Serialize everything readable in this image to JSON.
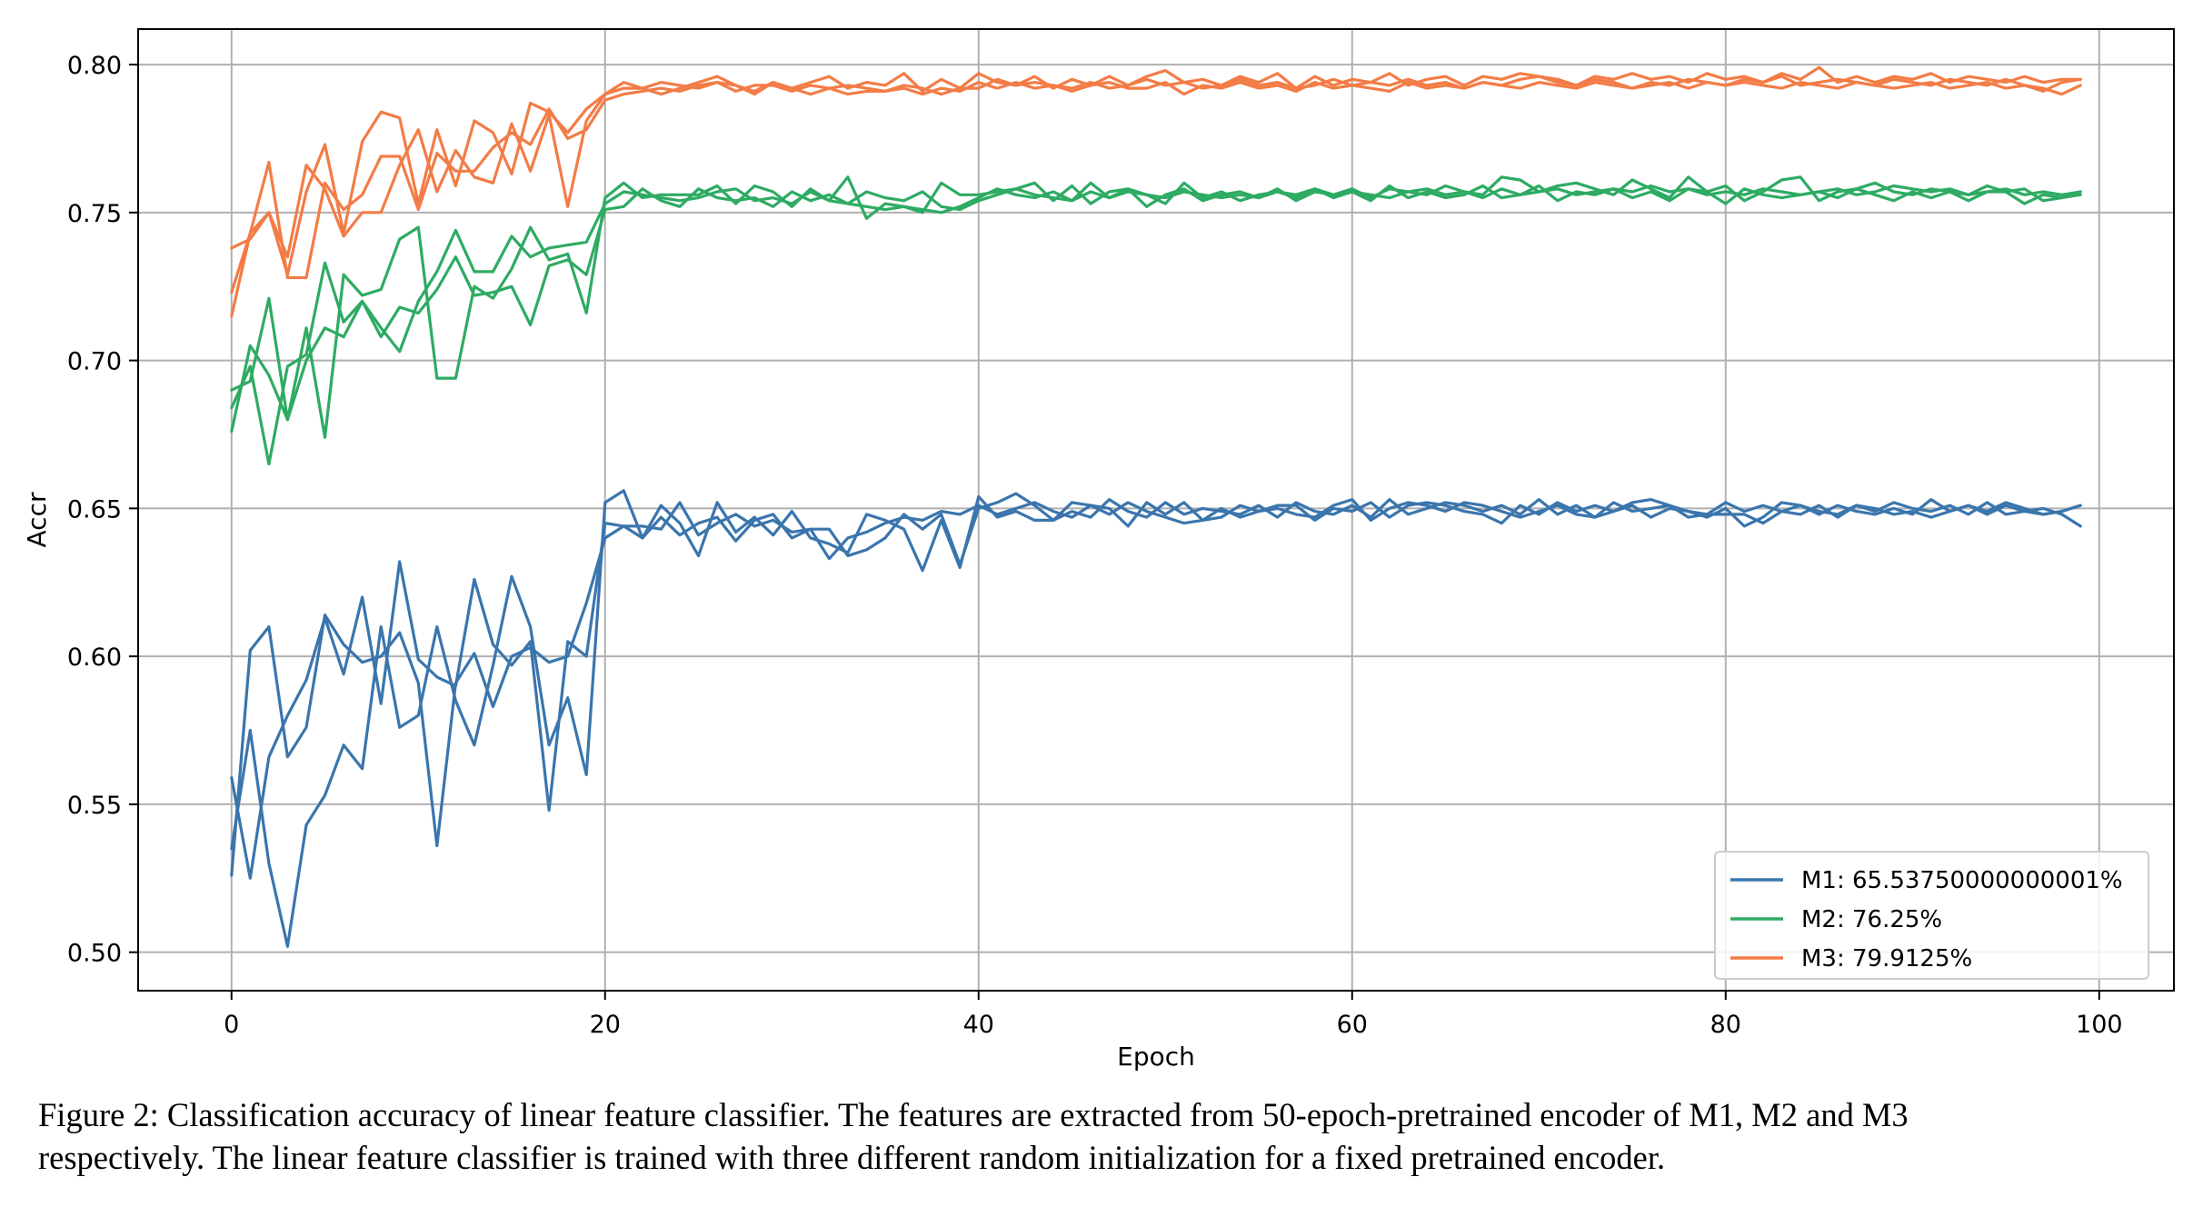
{
  "chart_data": {
    "type": "line",
    "xlabel": "Epoch",
    "ylabel": "Accr",
    "xlim": [
      -5,
      104
    ],
    "ylim": [
      0.487,
      0.812
    ],
    "xticks": [
      0,
      20,
      40,
      60,
      80,
      100
    ],
    "xtick_labels": [
      "0",
      "20",
      "40",
      "60",
      "80",
      "100"
    ],
    "yticks": [
      0.5,
      0.55,
      0.6,
      0.65,
      0.7,
      0.75,
      0.8
    ],
    "ytick_labels": [
      "0.50",
      "0.55",
      "0.60",
      "0.65",
      "0.70",
      "0.75",
      "0.80"
    ],
    "grid": true,
    "legend_position": "lower-right",
    "x": [
      0,
      1,
      2,
      3,
      4,
      5,
      6,
      7,
      8,
      9,
      10,
      11,
      12,
      13,
      14,
      15,
      16,
      17,
      18,
      19,
      20,
      21,
      22,
      23,
      24,
      25,
      26,
      27,
      28,
      29,
      30,
      31,
      32,
      33,
      34,
      35,
      36,
      37,
      38,
      39,
      40,
      41,
      42,
      43,
      44,
      45,
      46,
      47,
      48,
      49,
      50,
      51,
      52,
      53,
      54,
      55,
      56,
      57,
      58,
      59,
      60,
      61,
      62,
      63,
      64,
      65,
      66,
      67,
      68,
      69,
      70,
      71,
      72,
      73,
      74,
      75,
      76,
      77,
      78,
      79,
      80,
      81,
      82,
      83,
      84,
      85,
      86,
      87,
      88,
      89,
      90,
      91,
      92,
      93,
      94,
      95,
      96,
      97,
      98,
      99
    ],
    "series": [
      {
        "name": "M1: 65.53750000000001%",
        "group": "M1",
        "color": "#3a75ad",
        "values": [
          0.559,
          0.525,
          0.566,
          0.58,
          0.592,
          0.613,
          0.594,
          0.62,
          0.584,
          0.632,
          0.599,
          0.593,
          0.59,
          0.626,
          0.604,
          0.597,
          0.605,
          0.548,
          0.605,
          0.6,
          0.645,
          0.644,
          0.64,
          0.647,
          0.641,
          0.645,
          0.647,
          0.639,
          0.646,
          0.648,
          0.64,
          0.643,
          0.643,
          0.634,
          0.636,
          0.64,
          0.648,
          0.643,
          0.648,
          0.631,
          0.65,
          0.652,
          0.655,
          0.651,
          0.646,
          0.652,
          0.651,
          0.65,
          0.644,
          0.652,
          0.648,
          0.652,
          0.646,
          0.647,
          0.651,
          0.649,
          0.651,
          0.651,
          0.646,
          0.65,
          0.649,
          0.652,
          0.647,
          0.651,
          0.652,
          0.651,
          0.649,
          0.648,
          0.645,
          0.651,
          0.648,
          0.652,
          0.649,
          0.651,
          0.649,
          0.652,
          0.653,
          0.651,
          0.647,
          0.648,
          0.648,
          0.648,
          0.645,
          0.649,
          0.648,
          0.651,
          0.647,
          0.651,
          0.649,
          0.652,
          0.65,
          0.649,
          0.651,
          0.648,
          0.652,
          0.648,
          0.649,
          0.65,
          0.648,
          0.644
        ]
      },
      {
        "name": "",
        "group": "M1",
        "color": "#3a75ad",
        "values": [
          0.535,
          0.575,
          0.53,
          0.502,
          0.543,
          0.553,
          0.57,
          0.562,
          0.61,
          0.576,
          0.58,
          0.61,
          0.585,
          0.57,
          0.597,
          0.627,
          0.61,
          0.57,
          0.586,
          0.56,
          0.652,
          0.656,
          0.64,
          0.651,
          0.645,
          0.634,
          0.652,
          0.642,
          0.647,
          0.641,
          0.649,
          0.64,
          0.638,
          0.635,
          0.648,
          0.646,
          0.643,
          0.629,
          0.646,
          0.63,
          0.654,
          0.647,
          0.649,
          0.646,
          0.646,
          0.649,
          0.647,
          0.653,
          0.649,
          0.647,
          0.652,
          0.648,
          0.65,
          0.649,
          0.648,
          0.651,
          0.647,
          0.652,
          0.649,
          0.648,
          0.651,
          0.647,
          0.653,
          0.648,
          0.65,
          0.652,
          0.651,
          0.649,
          0.651,
          0.648,
          0.653,
          0.648,
          0.651,
          0.647,
          0.652,
          0.649,
          0.65,
          0.651,
          0.649,
          0.648,
          0.652,
          0.649,
          0.651,
          0.649,
          0.651,
          0.648,
          0.651,
          0.649,
          0.648,
          0.65,
          0.648,
          0.653,
          0.649,
          0.651,
          0.649,
          0.652,
          0.65,
          0.648,
          0.649,
          0.651
        ]
      },
      {
        "name": "",
        "group": "M1",
        "color": "#3a75ad",
        "values": [
          0.526,
          0.602,
          0.61,
          0.566,
          0.576,
          0.614,
          0.604,
          0.598,
          0.6,
          0.608,
          0.591,
          0.536,
          0.591,
          0.601,
          0.583,
          0.6,
          0.603,
          0.598,
          0.6,
          0.618,
          0.64,
          0.644,
          0.644,
          0.643,
          0.652,
          0.641,
          0.645,
          0.648,
          0.644,
          0.646,
          0.642,
          0.643,
          0.633,
          0.64,
          0.642,
          0.645,
          0.647,
          0.646,
          0.649,
          0.648,
          0.651,
          0.648,
          0.65,
          0.652,
          0.649,
          0.647,
          0.651,
          0.648,
          0.652,
          0.649,
          0.647,
          0.645,
          0.646,
          0.65,
          0.647,
          0.649,
          0.65,
          0.648,
          0.647,
          0.651,
          0.653,
          0.646,
          0.65,
          0.652,
          0.651,
          0.649,
          0.652,
          0.651,
          0.649,
          0.647,
          0.649,
          0.651,
          0.648,
          0.647,
          0.649,
          0.651,
          0.647,
          0.65,
          0.649,
          0.647,
          0.65,
          0.644,
          0.647,
          0.652,
          0.651,
          0.649,
          0.648,
          0.651,
          0.65,
          0.648,
          0.649,
          0.647,
          0.649,
          0.651,
          0.648,
          0.651,
          0.649,
          0.648,
          0.649,
          0.651
        ]
      },
      {
        "name": "M2: 76.25%",
        "group": "M2",
        "color": "#2eab63",
        "values": [
          0.69,
          0.693,
          0.721,
          0.68,
          0.7,
          0.711,
          0.708,
          0.72,
          0.711,
          0.703,
          0.72,
          0.73,
          0.744,
          0.73,
          0.73,
          0.742,
          0.735,
          0.738,
          0.739,
          0.74,
          0.753,
          0.757,
          0.756,
          0.755,
          0.754,
          0.755,
          0.757,
          0.758,
          0.754,
          0.755,
          0.753,
          0.757,
          0.754,
          0.753,
          0.752,
          0.751,
          0.752,
          0.751,
          0.75,
          0.752,
          0.755,
          0.758,
          0.756,
          0.755,
          0.757,
          0.754,
          0.757,
          0.755,
          0.758,
          0.756,
          0.755,
          0.757,
          0.756,
          0.755,
          0.756,
          0.755,
          0.757,
          0.756,
          0.758,
          0.755,
          0.757,
          0.756,
          0.755,
          0.757,
          0.758,
          0.756,
          0.757,
          0.755,
          0.758,
          0.756,
          0.757,
          0.758,
          0.756,
          0.757,
          0.758,
          0.757,
          0.759,
          0.757,
          0.758,
          0.756,
          0.757,
          0.756,
          0.758,
          0.757,
          0.756,
          0.757,
          0.758,
          0.756,
          0.757,
          0.759,
          0.758,
          0.757,
          0.758,
          0.756,
          0.757,
          0.758,
          0.756,
          0.757,
          0.756,
          0.757
        ]
      },
      {
        "name": "",
        "group": "M2",
        "color": "#2eab63",
        "values": [
          0.676,
          0.705,
          0.695,
          0.68,
          0.711,
          0.674,
          0.729,
          0.722,
          0.724,
          0.741,
          0.745,
          0.694,
          0.694,
          0.725,
          0.721,
          0.731,
          0.745,
          0.734,
          0.736,
          0.716,
          0.755,
          0.76,
          0.755,
          0.756,
          0.756,
          0.756,
          0.759,
          0.753,
          0.759,
          0.757,
          0.752,
          0.758,
          0.754,
          0.762,
          0.748,
          0.753,
          0.752,
          0.75,
          0.76,
          0.756,
          0.756,
          0.757,
          0.758,
          0.76,
          0.754,
          0.759,
          0.753,
          0.757,
          0.758,
          0.752,
          0.756,
          0.758,
          0.754,
          0.756,
          0.757,
          0.755,
          0.758,
          0.754,
          0.757,
          0.756,
          0.758,
          0.755,
          0.758,
          0.757,
          0.756,
          0.759,
          0.757,
          0.756,
          0.762,
          0.761,
          0.757,
          0.759,
          0.76,
          0.758,
          0.756,
          0.761,
          0.758,
          0.755,
          0.762,
          0.757,
          0.759,
          0.754,
          0.757,
          0.761,
          0.762,
          0.754,
          0.757,
          0.758,
          0.76,
          0.757,
          0.756,
          0.758,
          0.757,
          0.756,
          0.759,
          0.757,
          0.758,
          0.754,
          0.755,
          0.757
        ]
      },
      {
        "name": "",
        "group": "M2",
        "color": "#2eab63",
        "values": [
          0.684,
          0.698,
          0.665,
          0.698,
          0.702,
          0.733,
          0.713,
          0.72,
          0.708,
          0.718,
          0.716,
          0.724,
          0.735,
          0.722,
          0.723,
          0.725,
          0.712,
          0.732,
          0.734,
          0.729,
          0.751,
          0.752,
          0.758,
          0.754,
          0.752,
          0.758,
          0.755,
          0.754,
          0.755,
          0.752,
          0.757,
          0.754,
          0.756,
          0.753,
          0.757,
          0.755,
          0.754,
          0.757,
          0.752,
          0.751,
          0.754,
          0.756,
          0.758,
          0.756,
          0.755,
          0.754,
          0.76,
          0.755,
          0.757,
          0.756,
          0.753,
          0.76,
          0.755,
          0.757,
          0.754,
          0.756,
          0.757,
          0.755,
          0.758,
          0.756,
          0.757,
          0.754,
          0.759,
          0.755,
          0.757,
          0.755,
          0.756,
          0.759,
          0.755,
          0.756,
          0.759,
          0.754,
          0.757,
          0.756,
          0.758,
          0.755,
          0.757,
          0.754,
          0.758,
          0.757,
          0.753,
          0.758,
          0.756,
          0.755,
          0.756,
          0.757,
          0.755,
          0.758,
          0.756,
          0.754,
          0.757,
          0.755,
          0.757,
          0.754,
          0.757,
          0.757,
          0.753,
          0.756,
          0.755,
          0.756
        ]
      },
      {
        "name": "M3: 79.9125%",
        "group": "M3",
        "color": "#f37c46",
        "values": [
          0.715,
          0.743,
          0.767,
          0.728,
          0.728,
          0.76,
          0.751,
          0.756,
          0.769,
          0.769,
          0.751,
          0.77,
          0.764,
          0.764,
          0.772,
          0.777,
          0.773,
          0.785,
          0.775,
          0.778,
          0.788,
          0.79,
          0.791,
          0.792,
          0.791,
          0.793,
          0.794,
          0.793,
          0.791,
          0.794,
          0.792,
          0.79,
          0.792,
          0.793,
          0.792,
          0.791,
          0.793,
          0.792,
          0.79,
          0.792,
          0.792,
          0.795,
          0.793,
          0.794,
          0.793,
          0.792,
          0.794,
          0.792,
          0.793,
          0.795,
          0.793,
          0.794,
          0.792,
          0.793,
          0.795,
          0.793,
          0.794,
          0.792,
          0.793,
          0.795,
          0.793,
          0.794,
          0.793,
          0.795,
          0.793,
          0.794,
          0.792,
          0.794,
          0.793,
          0.795,
          0.796,
          0.794,
          0.793,
          0.795,
          0.794,
          0.792,
          0.794,
          0.793,
          0.795,
          0.794,
          0.793,
          0.795,
          0.794,
          0.796,
          0.793,
          0.794,
          0.795,
          0.794,
          0.793,
          0.795,
          0.794,
          0.793,
          0.795,
          0.794,
          0.793,
          0.795,
          0.793,
          0.791,
          0.794,
          0.795
        ]
      },
      {
        "name": "",
        "group": "M3",
        "color": "#f37c46",
        "values": [
          0.723,
          0.743,
          0.75,
          0.729,
          0.757,
          0.773,
          0.743,
          0.774,
          0.784,
          0.782,
          0.753,
          0.778,
          0.759,
          0.781,
          0.777,
          0.763,
          0.787,
          0.784,
          0.777,
          0.785,
          0.79,
          0.794,
          0.792,
          0.79,
          0.792,
          0.794,
          0.796,
          0.793,
          0.79,
          0.794,
          0.792,
          0.794,
          0.796,
          0.792,
          0.794,
          0.793,
          0.797,
          0.791,
          0.795,
          0.792,
          0.797,
          0.794,
          0.793,
          0.796,
          0.792,
          0.795,
          0.793,
          0.796,
          0.793,
          0.796,
          0.798,
          0.794,
          0.795,
          0.793,
          0.796,
          0.794,
          0.797,
          0.792,
          0.796,
          0.793,
          0.795,
          0.794,
          0.797,
          0.793,
          0.795,
          0.796,
          0.793,
          0.796,
          0.795,
          0.797,
          0.796,
          0.795,
          0.793,
          0.796,
          0.795,
          0.797,
          0.795,
          0.796,
          0.794,
          0.797,
          0.795,
          0.796,
          0.794,
          0.797,
          0.795,
          0.799,
          0.794,
          0.796,
          0.794,
          0.796,
          0.795,
          0.797,
          0.794,
          0.796,
          0.795,
          0.794,
          0.796,
          0.794,
          0.795,
          0.795
        ]
      },
      {
        "name": "",
        "group": "M3",
        "color": "#f37c46",
        "values": [
          0.738,
          0.741,
          0.75,
          0.735,
          0.766,
          0.758,
          0.742,
          0.75,
          0.75,
          0.766,
          0.778,
          0.757,
          0.771,
          0.762,
          0.76,
          0.78,
          0.764,
          0.783,
          0.752,
          0.781,
          0.79,
          0.792,
          0.792,
          0.794,
          0.793,
          0.792,
          0.794,
          0.791,
          0.793,
          0.793,
          0.791,
          0.793,
          0.792,
          0.79,
          0.791,
          0.791,
          0.792,
          0.79,
          0.792,
          0.791,
          0.794,
          0.792,
          0.794,
          0.792,
          0.793,
          0.791,
          0.793,
          0.794,
          0.792,
          0.792,
          0.794,
          0.79,
          0.793,
          0.792,
          0.794,
          0.792,
          0.793,
          0.791,
          0.794,
          0.792,
          0.793,
          0.792,
          0.791,
          0.794,
          0.792,
          0.793,
          0.792,
          0.794,
          0.793,
          0.792,
          0.794,
          0.793,
          0.792,
          0.794,
          0.793,
          0.792,
          0.793,
          0.794,
          0.792,
          0.794,
          0.793,
          0.794,
          0.793,
          0.792,
          0.794,
          0.793,
          0.792,
          0.794,
          0.793,
          0.792,
          0.793,
          0.794,
          0.792,
          0.793,
          0.794,
          0.792,
          0.793,
          0.792,
          0.79,
          0.793
        ]
      }
    ]
  },
  "caption": {
    "line1": "Figure 2: Classification accuracy of linear feature classifier. The features are extracted from 50-epoch-pretrained encoder of M1, M2 and M3",
    "line2": "respectively. The linear feature classifier is trained with three different random initialization for a fixed pretrained encoder."
  }
}
